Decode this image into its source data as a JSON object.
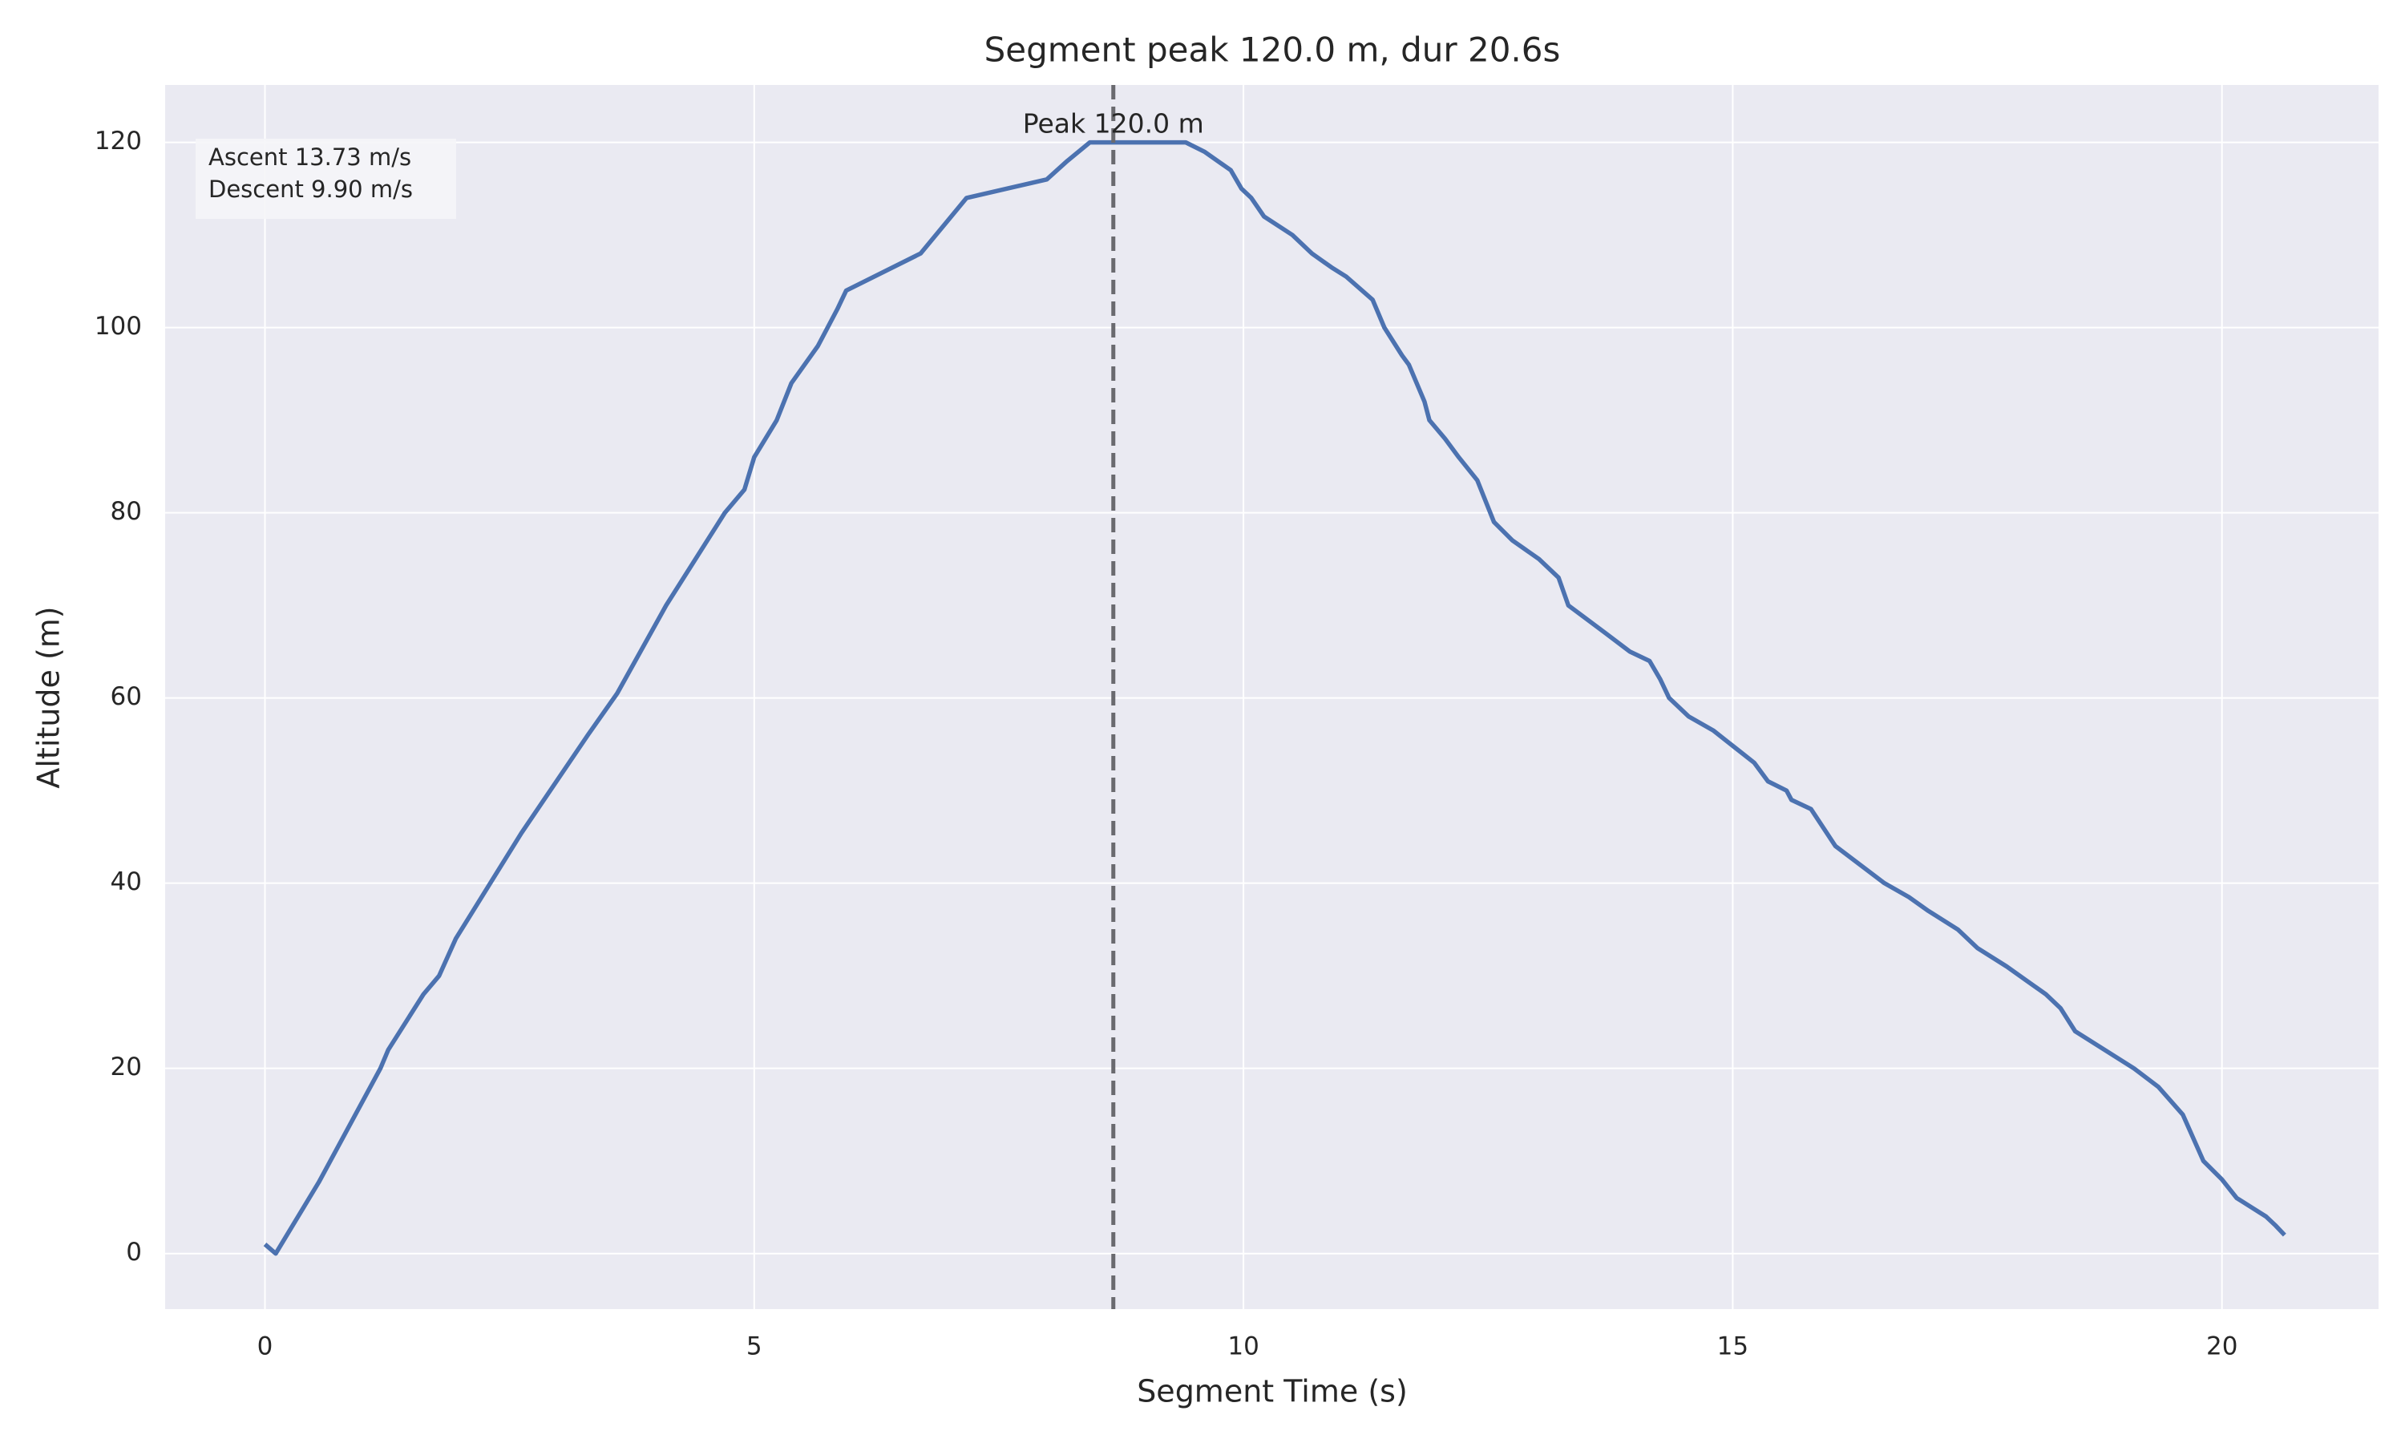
{
  "chart_data": {
    "type": "line",
    "title": "Segment peak 120.0 m, dur 20.6s",
    "xlabel": "Segment Time (s)",
    "ylabel": "Altitude (m)",
    "color": "#4c72b0",
    "x": [
      0,
      0.11,
      0.55,
      1.18,
      1.26,
      1.62,
      1.78,
      1.95,
      2.62,
      3.3,
      3.6,
      4.1,
      4.7,
      4.9,
      5.0,
      5.23,
      5.38,
      5.65,
      5.85,
      5.94,
      6.7,
      7.17,
      7.99,
      8.2,
      8.43,
      9.41,
      9.6,
      9.87,
      9.98,
      10.08,
      10.21,
      10.5,
      10.7,
      10.9,
      11.05,
      11.32,
      11.44,
      11.62,
      11.69,
      11.77,
      11.85,
      11.9,
      12.06,
      12.2,
      12.39,
      12.56,
      12.75,
      13.02,
      13.22,
      13.32,
      13.7,
      13.95,
      14.15,
      14.26,
      14.35,
      14.55,
      14.8,
      15.1,
      15.22,
      15.36,
      15.55,
      15.6,
      15.8,
      16.05,
      16.3,
      16.55,
      16.8,
      17.0,
      17.3,
      17.5,
      17.8,
      18.0,
      18.2,
      18.35,
      18.5,
      18.8,
      19.1,
      19.35,
      19.6,
      19.81,
      20.0,
      20.15,
      20.3,
      20.45,
      20.55,
      20.64
    ],
    "values": [
      1,
      0,
      7.7,
      20,
      22,
      28,
      30,
      34,
      45.4,
      56,
      60.5,
      70,
      80,
      82.5,
      86,
      90,
      94,
      98,
      102,
      104,
      108,
      114,
      116,
      118,
      120,
      120,
      119,
      117,
      115,
      114,
      112,
      110,
      108,
      106.5,
      105.5,
      103,
      100,
      97,
      96,
      94,
      92,
      90,
      88,
      86,
      83.5,
      79,
      77,
      75,
      73,
      70,
      67,
      65,
      64,
      62,
      60,
      58,
      56.5,
      54,
      53,
      51,
      50,
      49,
      48,
      44,
      42,
      40,
      38.5,
      37,
      35,
      33,
      31,
      29.5,
      28,
      26.5,
      24,
      22,
      20,
      18,
      15,
      10,
      8,
      6,
      5,
      4,
      3,
      2
    ],
    "xlim": [
      -1.02,
      21.6
    ],
    "ylim": [
      -6,
      126.2
    ],
    "xticks": [
      0,
      5,
      10,
      15,
      20
    ],
    "yticks": [
      0,
      20,
      40,
      60,
      80,
      100,
      120
    ],
    "grid": true,
    "vline": {
      "x": 8.67,
      "color": "#6a6a6f",
      "label": "Peak 120.0 m"
    },
    "stats_box": [
      "Ascent 13.73 m/s",
      "Descent 9.90 m/s"
    ]
  }
}
